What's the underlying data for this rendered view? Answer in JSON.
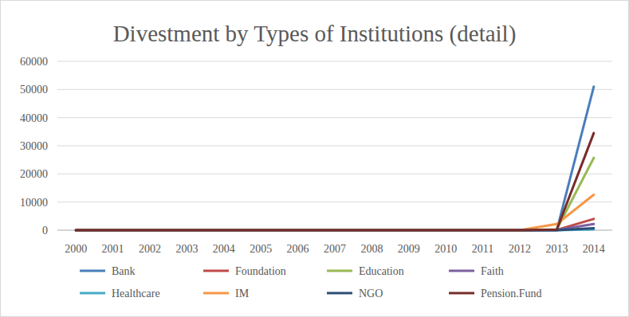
{
  "chart_data": {
    "type": "line",
    "title": "Divestment by Types of Institutions (detail)",
    "categories": [
      "2000",
      "2001",
      "2002",
      "2003",
      "2004",
      "2005",
      "2006",
      "2007",
      "2008",
      "2009",
      "2010",
      "2011",
      "2012",
      "2013",
      "2014"
    ],
    "ylim": [
      0,
      60000
    ],
    "yticks": [
      0,
      10000,
      20000,
      30000,
      40000,
      50000,
      60000
    ],
    "grid": true,
    "legend": "bottom",
    "series": [
      {
        "name": "Bank",
        "color": "#4a7ebb",
        "values": [
          0,
          0,
          0,
          0,
          0,
          0,
          0,
          0,
          0,
          0,
          0,
          0,
          0,
          0,
          51000
        ]
      },
      {
        "name": "Foundation",
        "color": "#be4b48",
        "values": [
          0,
          0,
          0,
          0,
          0,
          0,
          0,
          0,
          0,
          0,
          0,
          0,
          0,
          100,
          4000
        ]
      },
      {
        "name": "Education",
        "color": "#98b954",
        "values": [
          0,
          0,
          0,
          0,
          0,
          0,
          0,
          0,
          0,
          0,
          0,
          0,
          0,
          300,
          25700
        ]
      },
      {
        "name": "Faith",
        "color": "#7d60a0",
        "values": [
          0,
          0,
          0,
          0,
          0,
          0,
          0,
          0,
          0,
          0,
          0,
          0,
          0,
          50,
          2200
        ]
      },
      {
        "name": "Healthcare",
        "color": "#46aac5",
        "values": [
          0,
          0,
          0,
          0,
          0,
          0,
          0,
          0,
          0,
          0,
          0,
          0,
          0,
          0,
          300
        ]
      },
      {
        "name": "IM",
        "color": "#f79646",
        "values": [
          0,
          0,
          0,
          0,
          0,
          0,
          0,
          0,
          0,
          0,
          0,
          0,
          0,
          2200,
          12600
        ]
      },
      {
        "name": "NGO",
        "color": "#2c4d75",
        "values": [
          0,
          0,
          0,
          0,
          0,
          0,
          0,
          0,
          0,
          0,
          0,
          0,
          0,
          0,
          700
        ]
      },
      {
        "name": "Pension.Fund",
        "color": "#772c2a",
        "values": [
          0,
          0,
          0,
          0,
          0,
          0,
          0,
          0,
          0,
          0,
          0,
          0,
          0,
          200,
          34500
        ]
      }
    ]
  }
}
